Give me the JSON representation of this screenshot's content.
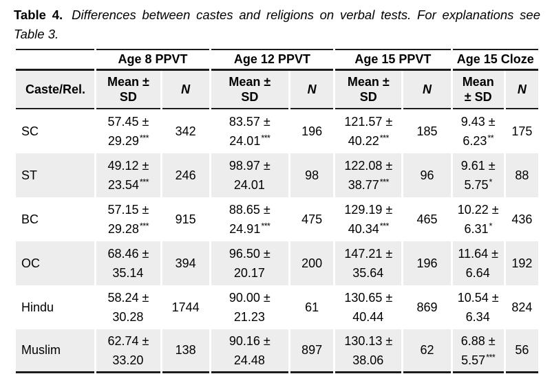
{
  "caption": {
    "label": "Table 4.",
    "text": "Differences between castes and religions on verbal tests. For explanations see Table 3."
  },
  "table": {
    "row_header": "Caste/Rel.",
    "groups": [
      {
        "label": "Age 8 PPVT",
        "mean_header": "Mean ±\nSD",
        "n_header": "N"
      },
      {
        "label": "Age 12 PPVT",
        "mean_header": "Mean ±\nSD",
        "n_header": "N"
      },
      {
        "label": "Age 15 PPVT",
        "mean_header": "Mean ±\nSD",
        "n_header": "N"
      },
      {
        "label": "Age 15 Cloze",
        "mean_header": "Mean\n± SD",
        "n_header": "N"
      }
    ],
    "rows": [
      {
        "caste": "SC",
        "cells": [
          {
            "mean": "57.45 ±",
            "sd": "29.29",
            "stars": "***",
            "n": "342"
          },
          {
            "mean": "83.57 ±",
            "sd": "24.01",
            "stars": "***",
            "n": "196"
          },
          {
            "mean": "121.57 ±",
            "sd": "40.22",
            "stars": "***",
            "n": "185"
          },
          {
            "mean": "9.43 ±",
            "sd": "6.23",
            "stars": "**",
            "n": "175"
          }
        ]
      },
      {
        "caste": "ST",
        "cells": [
          {
            "mean": "49.12 ±",
            "sd": "23.54",
            "stars": "***",
            "n": "246"
          },
          {
            "mean": "98.97 ±",
            "sd": "24.01",
            "stars": "",
            "n": "98"
          },
          {
            "mean": "122.08 ±",
            "sd": "38.77",
            "stars": "***",
            "n": "96"
          },
          {
            "mean": "9.61 ±",
            "sd": "5.75",
            "stars": "*",
            "n": "88"
          }
        ]
      },
      {
        "caste": "BC",
        "cells": [
          {
            "mean": "57.15 ±",
            "sd": "29.28",
            "stars": "***",
            "n": "915"
          },
          {
            "mean": "88.65 ±",
            "sd": "24.91",
            "stars": "***",
            "n": "475"
          },
          {
            "mean": "129.19 ±",
            "sd": "40.34",
            "stars": "***",
            "n": "465"
          },
          {
            "mean": "10.22 ±",
            "sd": "6.31",
            "stars": "*",
            "n": "436"
          }
        ]
      },
      {
        "caste": "OC",
        "cells": [
          {
            "mean": "68.46 ±",
            "sd": "35.14",
            "stars": "",
            "n": "394"
          },
          {
            "mean": "96.50 ±",
            "sd": "20.17",
            "stars": "",
            "n": "200"
          },
          {
            "mean": "147.21 ±",
            "sd": "35.64",
            "stars": "",
            "n": "196"
          },
          {
            "mean": "11.64 ±",
            "sd": "6.64",
            "stars": "",
            "n": "192"
          }
        ]
      },
      {
        "caste": "Hindu",
        "cells": [
          {
            "mean": "58.24 ±",
            "sd": "30.28",
            "stars": "",
            "n": "1744"
          },
          {
            "mean": "90.00 ±",
            "sd": "21.23",
            "stars": "",
            "n": "61"
          },
          {
            "mean": "130.65 ±",
            "sd": "40.44",
            "stars": "",
            "n": "869"
          },
          {
            "mean": "10.54 ±",
            "sd": "6.34",
            "stars": "",
            "n": "824"
          }
        ]
      },
      {
        "caste": "Muslim",
        "cells": [
          {
            "mean": "62.74 ±",
            "sd": "33.20",
            "stars": "",
            "n": "138"
          },
          {
            "mean": "90.16 ±",
            "sd": "24.48",
            "stars": "",
            "n": "897"
          },
          {
            "mean": "130.13 ±",
            "sd": "38.06",
            "stars": "",
            "n": "62"
          },
          {
            "mean": "6.88 ±",
            "sd": "5.57",
            "stars": "***",
            "n": "56"
          }
        ]
      }
    ]
  },
  "colors": {
    "row_shade": "#EDEDED",
    "rule_dark": "#1B1B1B"
  }
}
